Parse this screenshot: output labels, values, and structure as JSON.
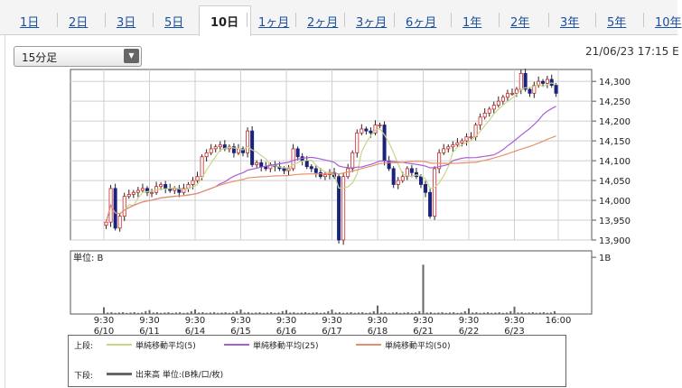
{
  "tabs": [
    {
      "label": "1日",
      "active": false
    },
    {
      "label": "2日",
      "active": false
    },
    {
      "label": "3日",
      "active": false
    },
    {
      "label": "5日",
      "active": false
    },
    {
      "label": "10日",
      "active": true
    },
    {
      "label": "1ヶ月",
      "active": false
    },
    {
      "label": "2ヶ月",
      "active": false
    },
    {
      "label": "3ヶ月",
      "active": false
    },
    {
      "label": "6ヶ月",
      "active": false
    },
    {
      "label": "1年",
      "active": false
    },
    {
      "label": "2年",
      "active": false
    },
    {
      "label": "3年",
      "active": false
    },
    {
      "label": "5年",
      "active": false
    },
    {
      "label": "10年",
      "active": false
    }
  ],
  "interval_select": {
    "value": "15分足",
    "arrow_icon": "triangle-down-icon"
  },
  "timestamp": "21/06/23 17:15 E",
  "legend": {
    "upper_label": "上段:",
    "lower_label": "下段:",
    "items": [
      {
        "label": "単純移動平均(5)",
        "color": "#c8d68a"
      },
      {
        "label": "単純移動平均(25)",
        "color": "#a65fd8"
      },
      {
        "label": "単純移動平均(50)",
        "color": "#e8906a"
      }
    ],
    "volume_label": "出来高 単位:(B株/口/枚)",
    "volume_color": "#666666"
  },
  "chart_data": [
    {
      "type": "line",
      "subtype": "candlestick",
      "interval": "15分足",
      "ylim": [
        13900,
        14330
      ],
      "yticks": [
        "14,300",
        "14,250",
        "14,200",
        "14,150",
        "14,100",
        "14,050",
        "14,000",
        "13,950",
        "13,900"
      ],
      "x_time_labels": [
        "9:30",
        "9:30",
        "9:30",
        "9:30",
        "9:30",
        "9:30",
        "9:30",
        "9:30",
        "9:30",
        "9:30",
        "16:00"
      ],
      "x_date_labels": [
        "6/10",
        "6/11",
        "6/14",
        "6/15",
        "6/16",
        "6/17",
        "6/18",
        "6/21",
        "6/22",
        "6/23",
        ""
      ],
      "grid": true,
      "series_close": [
        {
          "day": "6/10",
          "values": [
            13945,
            14030,
            13930,
            13960,
            14010,
            14015,
            14020,
            14025,
            14030,
            14020
          ]
        },
        {
          "day": "6/11",
          "values": [
            14020,
            14035,
            14040,
            14030,
            14025,
            14030,
            14020,
            14030,
            14040,
            14050
          ]
        },
        {
          "day": "6/14",
          "values": [
            14060,
            14110,
            14120,
            14130,
            14135,
            14140,
            14130,
            14135,
            14120,
            14130
          ]
        },
        {
          "day": "6/15",
          "values": [
            14120,
            14175,
            14090,
            14095,
            14085,
            14080,
            14090,
            14085,
            14080,
            14075
          ]
        },
        {
          "day": "6/16",
          "values": [
            14080,
            14130,
            14110,
            14100,
            14085,
            14080,
            14070,
            14060,
            14065,
            14070
          ]
        },
        {
          "day": "6/17",
          "values": [
            14060,
            13900,
            14060,
            14080,
            14120,
            14170,
            14180,
            14175,
            14170,
            14190
          ]
        },
        {
          "day": "6/18",
          "values": [
            14190,
            14100,
            14080,
            14040,
            14050,
            14060,
            14080,
            14070,
            14060,
            14040
          ]
        },
        {
          "day": "6/21",
          "values": [
            14020,
            13960,
            14080,
            14120,
            14130,
            14135,
            14140,
            14145,
            14150,
            14160
          ]
        },
        {
          "day": "6/22",
          "values": [
            14160,
            14190,
            14210,
            14220,
            14230,
            14240,
            14250,
            14260,
            14270,
            14270
          ]
        },
        {
          "day": "6/23",
          "values": [
            14280,
            14320,
            14280,
            14270,
            14290,
            14300,
            14295,
            14305,
            14290,
            14270
          ]
        }
      ],
      "sma_series": [
        {
          "name": "単純移動平均(5)",
          "window": 5
        },
        {
          "name": "単純移動平均(25)",
          "window": 25
        },
        {
          "name": "単純移動平均(50)",
          "window": 50
        }
      ]
    },
    {
      "type": "bar",
      "title": "単位: B",
      "yticks": [
        "1B"
      ],
      "ylim": [
        0,
        1.05
      ],
      "unit": "B株/口/枚",
      "days": [
        "6/10",
        "6/11",
        "6/14",
        "6/15",
        "6/16",
        "6/17",
        "6/18",
        "6/21",
        "6/22",
        "6/23"
      ],
      "open_spike": [
        0.12,
        0.07,
        0.08,
        0.08,
        0.07,
        0.08,
        0.15,
        0.87,
        0.1,
        0.13
      ],
      "base": 0.02
    }
  ]
}
